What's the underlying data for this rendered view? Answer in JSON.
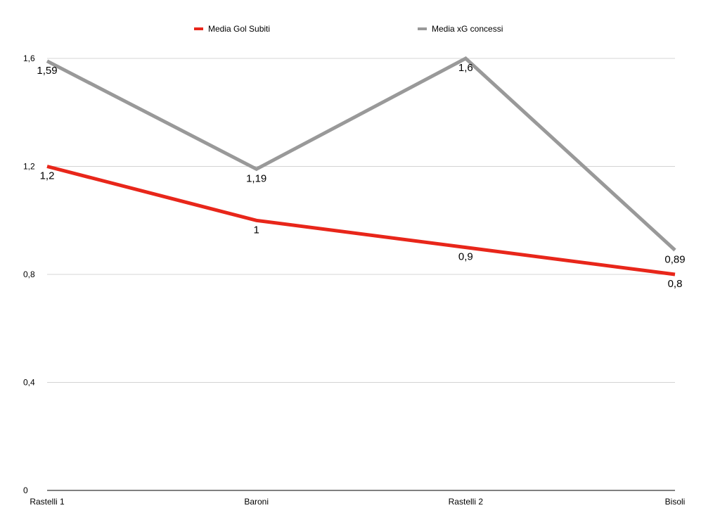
{
  "chart_data": {
    "type": "line",
    "title": "",
    "xlabel": "",
    "ylabel": "",
    "categories": [
      "Rastelli 1",
      "Baroni",
      "Rastelli 2",
      "Bisoli"
    ],
    "ylim": [
      0,
      1.6
    ],
    "yticks": [
      0,
      0.4,
      0.8,
      1.2,
      1.6
    ],
    "ytick_labels": [
      "0",
      "0,4",
      "0,8",
      "1,2",
      "1,6"
    ],
    "grid": true,
    "legend_position": "top",
    "series": [
      {
        "name": "Media Gol Subiti",
        "color": "#e8261a",
        "values": [
          1.2,
          1.0,
          0.9,
          0.8
        ],
        "labels": [
          "1,2",
          "1",
          "0,9",
          "0,8"
        ]
      },
      {
        "name": "Media xG concessi",
        "color": "#999999",
        "values": [
          1.59,
          1.19,
          1.6,
          0.89
        ],
        "labels": [
          "1,59",
          "1,19",
          "1,6",
          "0,89"
        ]
      }
    ]
  }
}
